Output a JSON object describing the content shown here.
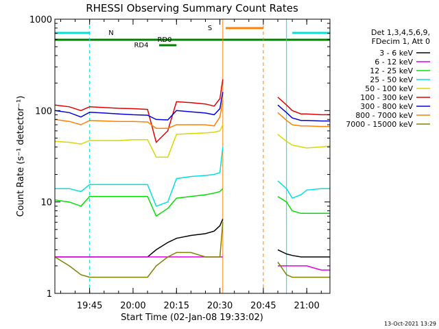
{
  "chart_data": {
    "type": "line",
    "title": "RHESSI Observing Summary Count Rates",
    "xlabel": "Start Time (02-Jan-08 19:33:02)",
    "ylabel": "Count Rate (s⁻¹ detector⁻¹)",
    "yscale": "log",
    "ylim": [
      1,
      1000
    ],
    "xlim": [
      "19:33",
      "21:08"
    ],
    "x_tick_labels": [
      "19:45",
      "20:00",
      "20:15",
      "20:30",
      "20:45",
      "21:00"
    ],
    "y_tick_labels": [
      "1",
      "10",
      "100",
      "1000"
    ],
    "x": [
      "19:33",
      "19:38",
      "19:42",
      "19:45",
      "19:50",
      "19:55",
      "20:00",
      "20:05",
      "20:08",
      "20:12",
      "20:15",
      "20:20",
      "20:25",
      "20:28",
      "20:30",
      "20:31",
      "20:50",
      "20:53",
      "20:55",
      "20:58",
      "21:00",
      "21:05",
      "21:08"
    ],
    "series": [
      {
        "name": "3 - 6 keV",
        "color": "#000000",
        "values": [
          2.5,
          2.5,
          2.5,
          2.5,
          2.5,
          2.5,
          2.5,
          2.5,
          3.0,
          3.6,
          4.0,
          4.3,
          4.5,
          4.8,
          5.5,
          6.5,
          3.0,
          2.7,
          2.6,
          2.5,
          2.5,
          2.5,
          2.5
        ]
      },
      {
        "name": "6 - 12 keV",
        "color": "#e000e0",
        "values": [
          2.5,
          2.5,
          2.5,
          2.5,
          2.5,
          2.5,
          2.5,
          2.5,
          2.5,
          2.5,
          2.5,
          2.5,
          2.5,
          2.5,
          2.5,
          2.5,
          2.0,
          2.0,
          2.0,
          2.0,
          2.0,
          1.8,
          1.8
        ]
      },
      {
        "name": "12 - 25 keV",
        "color": "#00e000",
        "values": [
          10.5,
          10.0,
          9.0,
          11.5,
          11.5,
          11.5,
          11.5,
          11.5,
          7.0,
          8.5,
          11.0,
          11.5,
          12.0,
          12.5,
          13.0,
          14.0,
          11.5,
          10.0,
          8.0,
          7.5,
          7.5,
          7.5,
          7.5
        ]
      },
      {
        "name": "25 - 50 keV",
        "color": "#00e0e0",
        "values": [
          14.0,
          14.0,
          13.0,
          15.5,
          15.5,
          15.5,
          15.5,
          15.5,
          9.0,
          10.0,
          18.0,
          19.0,
          19.5,
          20.0,
          21.0,
          40.0,
          17.0,
          14.0,
          11.0,
          12.0,
          13.5,
          14.0,
          14.0
        ]
      },
      {
        "name": "50 - 100 keV",
        "color": "#d8d800",
        "values": [
          46.0,
          45.0,
          43.0,
          47.0,
          47.0,
          47.0,
          48.0,
          48.0,
          31.0,
          31.0,
          55.0,
          56.0,
          57.0,
          58.0,
          60.0,
          70.0,
          55.0,
          46.0,
          42.0,
          40.0,
          39.0,
          40.0,
          41.0
        ]
      },
      {
        "name": "100 - 300 keV",
        "color": "#e00000",
        "values": [
          115.0,
          110.0,
          100.0,
          110.0,
          108.0,
          106.0,
          105.0,
          103.0,
          45.0,
          60.0,
          125.0,
          122.0,
          118.0,
          112.0,
          135.0,
          220.0,
          140.0,
          115.0,
          100.0,
          92.0,
          92.0,
          90.0,
          90.0
        ]
      },
      {
        "name": "300 - 800 keV",
        "color": "#0000e0",
        "values": [
          100.0,
          95.0,
          85.0,
          96.0,
          94.0,
          92.0,
          90.0,
          89.0,
          80.0,
          79.0,
          100.0,
          97.0,
          94.0,
          90.0,
          105.0,
          160.0,
          115.0,
          95.0,
          83.0,
          78.0,
          78.0,
          77.0,
          77.0
        ]
      },
      {
        "name": "800 - 7000 keV",
        "color": "#ff8000",
        "values": [
          80.0,
          76.0,
          70.0,
          78.0,
          77.0,
          76.0,
          76.0,
          75.0,
          64.0,
          64.0,
          70.0,
          70.0,
          70.0,
          68.0,
          85.0,
          130.0,
          95.0,
          78.0,
          70.0,
          68.0,
          68.0,
          67.0,
          67.0
        ]
      },
      {
        "name": "7000 - 15000 keV",
        "color": "#808000",
        "values": [
          2.5,
          2.0,
          1.6,
          1.5,
          1.5,
          1.5,
          1.5,
          1.5,
          2.0,
          2.5,
          2.8,
          2.8,
          2.5,
          2.5,
          2.5,
          6.0,
          2.2,
          1.6,
          1.5,
          1.5,
          1.5,
          1.5,
          1.5
        ]
      }
    ],
    "legend": {
      "placement": "right",
      "header": [
        "Det 1,3,4,5,6,9,",
        "FDecim 1, Att 0"
      ]
    },
    "flag_bars": [
      {
        "label": "N",
        "color": "#00e0e0",
        "segments": [
          [
            "19:33",
            "19:45"
          ],
          [
            "20:55",
            "21:08"
          ]
        ]
      },
      {
        "label": "RD0",
        "color": "#008000",
        "segments": [
          [
            "19:33",
            "21:08"
          ]
        ]
      },
      {
        "label": "RD4",
        "color": "#008000",
        "segments": [
          [
            "20:09",
            "20:15"
          ]
        ]
      },
      {
        "label": "S",
        "color": "#ff8000",
        "segments": [
          [
            "20:32",
            "20:45"
          ]
        ]
      }
    ],
    "vertical_markers": [
      {
        "time": "19:33",
        "color": "#00e0e0",
        "style": "solid"
      },
      {
        "time": "19:45",
        "color": "#00e0e0",
        "style": "dashed"
      },
      {
        "time": "20:31",
        "color": "#ff8000",
        "style": "solid"
      },
      {
        "time": "20:45",
        "color": "#ff8000",
        "style": "dashed"
      },
      {
        "time": "20:53",
        "color": "#00e0e0",
        "style": "solid"
      },
      {
        "time": "21:08",
        "color": "#00e0e0",
        "style": "dashed"
      }
    ],
    "data_gap": [
      "20:31",
      "20:50"
    ],
    "footer": "13-Oct-2021 13:29"
  }
}
